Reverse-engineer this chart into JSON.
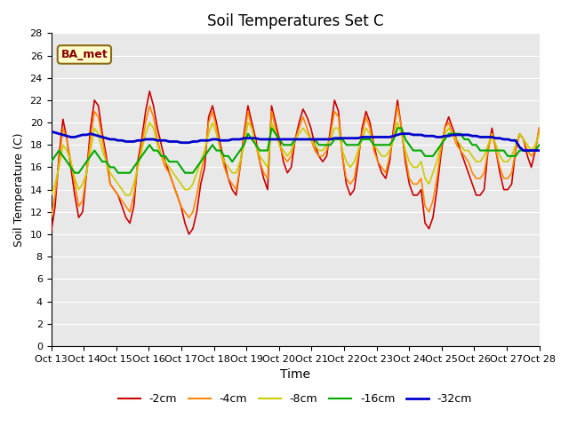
{
  "title": "Soil Temperatures Set C",
  "xlabel": "Time",
  "ylabel": "Soil Temperature (C)",
  "ylim": [
    0,
    28
  ],
  "background_color": "#e8e8e8",
  "annotation_text": "BA_met",
  "x_labels": [
    "Oct 13",
    "Oct 14",
    "Oct 15",
    "Oct 16",
    "Oct 17",
    "Oct 18",
    "Oct 19",
    "Oct 20",
    "Oct 21",
    "Oct 22",
    "Oct 23",
    "Oct 24",
    "Oct 25",
    "Oct 26",
    "Oct 27",
    "Oct 28"
  ],
  "legend_labels": [
    "-2cm",
    "-4cm",
    "-8cm",
    "-16cm",
    "-32cm"
  ],
  "line_colors": [
    "#cc0000",
    "#ff8800",
    "#cccc00",
    "#00aa00",
    "#0000cc"
  ],
  "series": {
    "depth_2cm": [
      10.2,
      12.5,
      17.0,
      20.3,
      18.5,
      16.0,
      13.5,
      11.5,
      12.0,
      15.5,
      19.5,
      22.0,
      21.5,
      19.0,
      17.0,
      14.5,
      14.0,
      13.5,
      12.5,
      11.5,
      11.0,
      12.5,
      16.5,
      18.5,
      21.0,
      22.8,
      21.5,
      19.5,
      18.0,
      16.5,
      15.5,
      14.5,
      13.5,
      12.5,
      11.0,
      10.0,
      10.5,
      12.0,
      14.5,
      16.0,
      20.5,
      21.5,
      20.0,
      18.0,
      16.5,
      15.0,
      14.0,
      13.5,
      16.0,
      19.0,
      21.5,
      20.0,
      18.5,
      16.5,
      15.0,
      14.0,
      21.5,
      20.0,
      18.5,
      16.5,
      15.5,
      16.0,
      18.5,
      20.0,
      21.2,
      20.5,
      19.5,
      18.0,
      17.0,
      16.5,
      17.0,
      19.5,
      22.0,
      21.0,
      17.0,
      14.5,
      13.5,
      14.0,
      16.5,
      19.5,
      21.0,
      20.0,
      18.0,
      16.5,
      15.5,
      15.0,
      16.5,
      19.5,
      22.0,
      19.5,
      16.5,
      14.5,
      13.5,
      13.5,
      14.0,
      11.0,
      10.5,
      11.5,
      14.0,
      17.0,
      19.5,
      20.5,
      19.5,
      18.5,
      17.5,
      16.5,
      15.5,
      14.5,
      13.5,
      13.5,
      14.0,
      17.5,
      19.5,
      17.5,
      15.5,
      14.0,
      14.0,
      14.5,
      17.5,
      19.0,
      18.5,
      17.0,
      16.0,
      17.5,
      19.5
    ],
    "depth_4cm": [
      11.5,
      13.5,
      16.5,
      19.5,
      18.5,
      16.5,
      14.5,
      12.5,
      13.0,
      15.5,
      18.5,
      21.0,
      20.5,
      18.5,
      16.5,
      14.5,
      14.0,
      13.5,
      13.0,
      12.5,
      12.0,
      13.5,
      16.0,
      18.0,
      20.0,
      21.5,
      20.5,
      18.5,
      17.0,
      16.0,
      15.5,
      14.5,
      13.5,
      12.5,
      12.0,
      11.5,
      12.0,
      13.5,
      15.5,
      17.0,
      20.0,
      21.0,
      19.5,
      17.5,
      16.0,
      15.0,
      14.5,
      14.0,
      16.0,
      18.5,
      21.0,
      19.5,
      18.0,
      16.5,
      15.5,
      15.0,
      21.0,
      19.5,
      18.0,
      17.0,
      16.5,
      17.0,
      18.5,
      19.5,
      20.5,
      19.5,
      18.5,
      17.5,
      17.0,
      17.0,
      17.5,
      19.0,
      21.0,
      20.5,
      17.0,
      15.0,
      14.5,
      15.0,
      17.0,
      19.0,
      20.5,
      19.5,
      17.5,
      16.5,
      16.0,
      15.5,
      17.0,
      19.0,
      21.5,
      19.5,
      17.0,
      15.0,
      14.5,
      14.5,
      15.0,
      12.5,
      12.0,
      13.0,
      15.0,
      17.5,
      19.5,
      20.0,
      19.0,
      18.0,
      17.5,
      17.0,
      16.5,
      15.5,
      15.0,
      15.0,
      15.5,
      17.5,
      19.0,
      17.5,
      16.0,
      15.0,
      15.0,
      15.5,
      17.5,
      19.0,
      18.5,
      17.5,
      17.0,
      17.5,
      19.5
    ],
    "depth_8cm": [
      13.5,
      14.5,
      16.0,
      18.0,
      17.5,
      16.5,
      15.0,
      14.0,
      14.5,
      15.5,
      17.5,
      19.5,
      19.0,
      17.5,
      16.5,
      15.5,
      15.0,
      14.5,
      14.0,
      13.5,
      13.5,
      14.5,
      16.0,
      17.5,
      19.0,
      20.0,
      19.5,
      18.0,
      17.0,
      16.5,
      16.0,
      15.5,
      15.0,
      14.5,
      14.0,
      14.0,
      14.5,
      15.5,
      16.5,
      17.5,
      19.0,
      20.0,
      19.0,
      17.5,
      16.5,
      16.0,
      15.5,
      15.5,
      16.5,
      18.0,
      20.0,
      19.5,
      18.0,
      17.0,
      16.5,
      16.0,
      20.0,
      19.0,
      18.0,
      17.5,
      17.0,
      17.5,
      18.5,
      19.0,
      19.5,
      19.0,
      18.5,
      18.0,
      17.5,
      17.5,
      18.0,
      18.5,
      19.5,
      19.5,
      17.5,
      16.5,
      16.0,
      16.5,
      17.5,
      18.5,
      19.5,
      19.0,
      18.0,
      17.5,
      17.0,
      17.0,
      17.5,
      18.5,
      20.0,
      19.0,
      17.5,
      16.5,
      16.0,
      16.0,
      16.5,
      15.0,
      14.5,
      15.5,
      16.5,
      18.0,
      19.0,
      19.5,
      19.0,
      18.5,
      18.0,
      17.5,
      17.5,
      17.0,
      16.5,
      16.5,
      17.0,
      18.0,
      19.0,
      18.0,
      17.0,
      16.5,
      16.5,
      17.0,
      18.0,
      19.0,
      18.5,
      18.0,
      17.5,
      18.0,
      19.0
    ],
    "depth_16cm": [
      16.5,
      17.0,
      17.5,
      17.0,
      16.5,
      16.0,
      15.5,
      15.5,
      16.0,
      16.5,
      17.0,
      17.5,
      17.0,
      16.5,
      16.5,
      16.0,
      16.0,
      15.5,
      15.5,
      15.5,
      15.5,
      16.0,
      16.5,
      17.0,
      17.5,
      18.0,
      17.5,
      17.5,
      17.0,
      17.0,
      16.5,
      16.5,
      16.5,
      16.0,
      15.5,
      15.5,
      15.5,
      16.0,
      16.5,
      17.0,
      17.5,
      18.0,
      17.5,
      17.5,
      17.0,
      17.0,
      16.5,
      17.0,
      17.5,
      18.0,
      19.0,
      18.5,
      18.0,
      17.5,
      17.5,
      17.5,
      19.5,
      19.0,
      18.5,
      18.0,
      18.0,
      18.0,
      18.5,
      18.5,
      18.5,
      18.5,
      18.5,
      18.5,
      18.0,
      18.0,
      18.0,
      18.0,
      18.5,
      18.5,
      18.5,
      18.0,
      18.0,
      18.0,
      18.0,
      18.5,
      18.5,
      18.5,
      18.0,
      18.0,
      18.0,
      18.0,
      18.0,
      18.5,
      19.5,
      19.5,
      18.5,
      18.0,
      17.5,
      17.5,
      17.5,
      17.0,
      17.0,
      17.0,
      17.5,
      18.0,
      18.5,
      19.0,
      19.0,
      19.0,
      19.0,
      18.5,
      18.5,
      18.0,
      18.0,
      17.5,
      17.5,
      17.5,
      17.5,
      17.5,
      17.5,
      17.5,
      17.0,
      17.0,
      17.0,
      17.5,
      17.5,
      17.5,
      17.5,
      17.5,
      18.0
    ],
    "depth_32cm": [
      19.2,
      19.1,
      19.0,
      18.9,
      18.8,
      18.7,
      18.7,
      18.8,
      18.9,
      18.9,
      19.0,
      18.9,
      18.8,
      18.7,
      18.6,
      18.5,
      18.5,
      18.4,
      18.4,
      18.3,
      18.3,
      18.3,
      18.4,
      18.4,
      18.5,
      18.5,
      18.5,
      18.4,
      18.4,
      18.4,
      18.3,
      18.3,
      18.3,
      18.2,
      18.2,
      18.2,
      18.3,
      18.3,
      18.4,
      18.4,
      18.4,
      18.5,
      18.5,
      18.4,
      18.4,
      18.4,
      18.5,
      18.5,
      18.5,
      18.6,
      18.6,
      18.6,
      18.6,
      18.5,
      18.5,
      18.5,
      18.5,
      18.5,
      18.5,
      18.5,
      18.5,
      18.5,
      18.5,
      18.5,
      18.5,
      18.5,
      18.5,
      18.5,
      18.5,
      18.5,
      18.5,
      18.5,
      18.6,
      18.6,
      18.6,
      18.6,
      18.6,
      18.6,
      18.6,
      18.7,
      18.7,
      18.7,
      18.7,
      18.7,
      18.7,
      18.7,
      18.7,
      18.8,
      18.9,
      19.0,
      19.0,
      19.0,
      18.9,
      18.9,
      18.9,
      18.8,
      18.8,
      18.8,
      18.7,
      18.7,
      18.8,
      18.8,
      18.9,
      18.9,
      18.9,
      18.9,
      18.9,
      18.8,
      18.8,
      18.7,
      18.7,
      18.7,
      18.7,
      18.6,
      18.6,
      18.5,
      18.5,
      18.4,
      18.4,
      17.8,
      17.5,
      17.5,
      17.5,
      17.5,
      17.5
    ]
  }
}
